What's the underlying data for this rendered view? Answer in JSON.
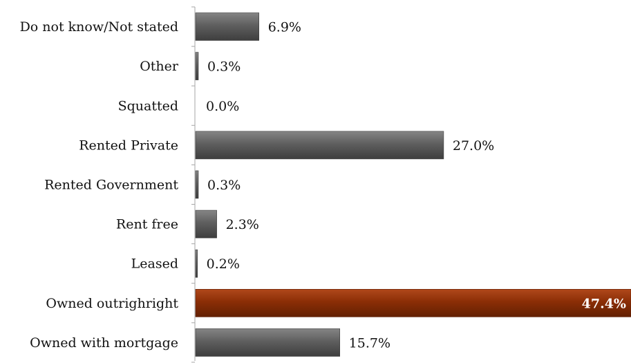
{
  "chart_data": {
    "type": "bar",
    "orientation": "horizontal",
    "categories": [
      "Do not know/Not stated",
      "Other",
      "Squatted",
      "Rented Private",
      "Rented Government",
      "Rent free",
      "Leased",
      "Owned outrighright",
      "Owned with mortgage"
    ],
    "values": [
      6.9,
      0.3,
      0.0,
      27.0,
      0.3,
      2.3,
      0.2,
      47.4,
      15.7
    ],
    "value_labels": [
      "6.9%",
      "0.3%",
      "0.0%",
      "27.0%",
      "0.3%",
      "2.3%",
      "0.2%",
      "47.4%",
      "15.7%"
    ],
    "highlight_category": "Owned outrighright",
    "title": "",
    "xlabel": "",
    "ylabel": "",
    "xlim": [
      0,
      47.4
    ],
    "grid": false,
    "legend": "none",
    "colors": {
      "bar": "#5f5f5f",
      "bar_highlight": "#8b2e06",
      "axis": "#a6a6a6"
    }
  }
}
